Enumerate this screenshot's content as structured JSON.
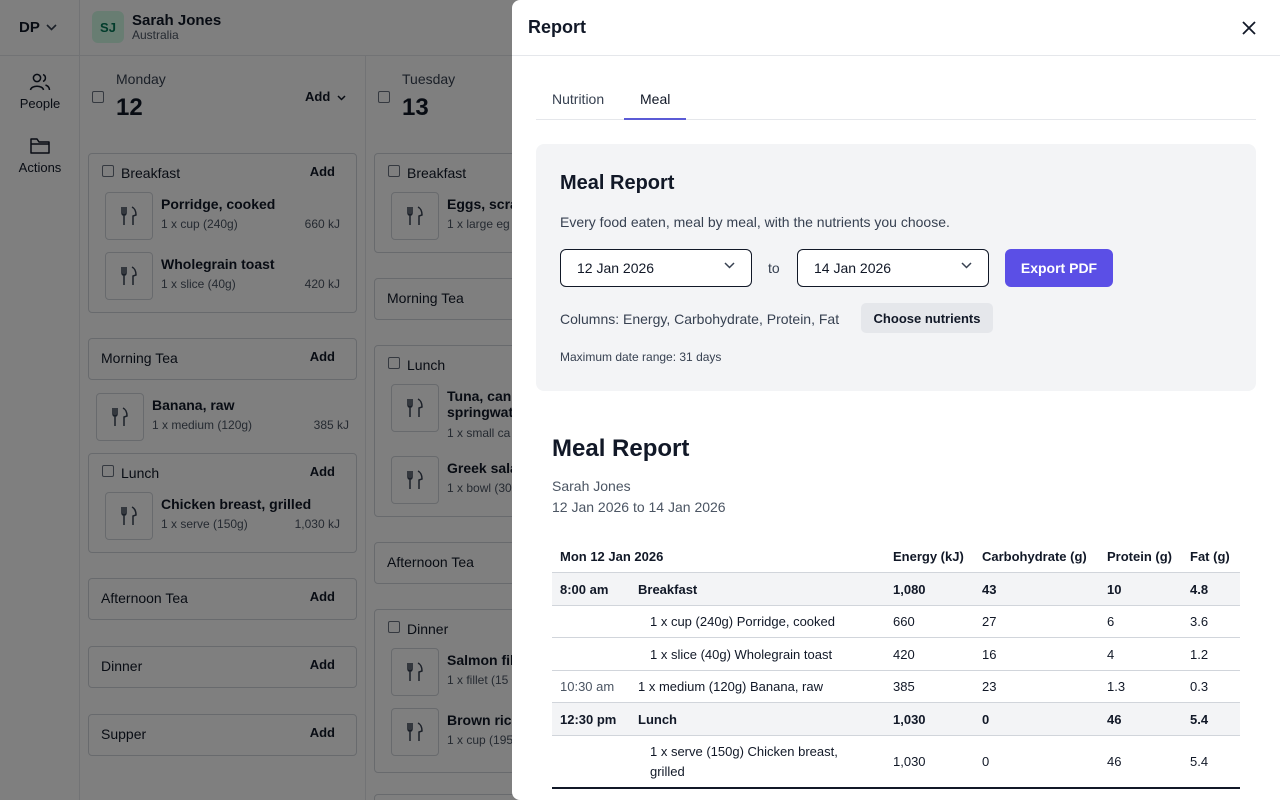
{
  "app": {
    "workspace": "DP",
    "person": {
      "initials": "SJ",
      "name": "Sarah Jones",
      "country": "Australia"
    },
    "sidebar": [
      {
        "label": "People",
        "icon": "people-icon"
      },
      {
        "label": "Actions",
        "icon": "folder-icon"
      }
    ],
    "days": [
      {
        "name": "Monday",
        "number": "12",
        "add_label": "Add",
        "meals": {
          "breakfast": {
            "title": "Breakfast",
            "add": "Add",
            "items": [
              {
                "name": "Porridge, cooked",
                "serving": "1 x cup (240g)",
                "energy": "660 kJ"
              },
              {
                "name": "Wholegrain toast",
                "serving": "1 x slice (40g)",
                "energy": "420 kJ"
              }
            ]
          },
          "morning_tea": {
            "title": "Morning Tea",
            "add": "Add",
            "items": [
              {
                "name": "Banana, raw",
                "serving": "1 x medium (120g)",
                "energy": "385 kJ"
              }
            ]
          },
          "lunch": {
            "title": "Lunch",
            "add": "Add",
            "items": [
              {
                "name": "Chicken breast, grilled",
                "serving": "1 x serve (150g)",
                "energy": "1,030 kJ"
              }
            ]
          },
          "afternoon_tea": {
            "title": "Afternoon Tea",
            "add": "Add"
          },
          "dinner": {
            "title": "Dinner",
            "add": "Add"
          },
          "supper": {
            "title": "Supper",
            "add": "Add"
          }
        }
      },
      {
        "name": "Tuesday",
        "number": "13",
        "meals": {
          "breakfast": {
            "title": "Breakfast",
            "items": [
              {
                "name": "Eggs, scra",
                "serving": "1 x large eg"
              }
            ]
          },
          "morning_tea": {
            "title": "Morning Tea"
          },
          "lunch": {
            "title": "Lunch",
            "items": [
              {
                "name": "Tuna, cann",
                "name2": "springwat",
                "serving": "1 x small ca"
              },
              {
                "name": "Greek sala",
                "serving": "1 x bowl (30"
              }
            ]
          },
          "afternoon_tea": {
            "title": "Afternoon Tea"
          },
          "dinner": {
            "title": "Dinner",
            "items": [
              {
                "name": "Salmon fil",
                "serving": "1 x fillet (15"
              },
              {
                "name": "Brown rice",
                "serving": "1 x cup (195"
              }
            ]
          }
        }
      }
    ]
  },
  "drawer": {
    "title": "Report",
    "tabs": [
      {
        "label": "Nutrition",
        "active": false
      },
      {
        "label": "Meal",
        "active": true
      }
    ],
    "panel": {
      "title": "Meal Report",
      "description": "Every food eaten, meal by meal, with the nutrients you choose.",
      "from_date": "12 Jan 2026",
      "to_label": "to",
      "to_date": "14 Jan 2026",
      "export_label": "Export PDF",
      "columns_label": "Columns: Energy, Carbohydrate, Protein, Fat",
      "choose_label": "Choose nutrients",
      "max_range": "Maximum date range: 31 days"
    },
    "report": {
      "title": "Meal Report",
      "person": "Sarah Jones",
      "range": "12 Jan 2026 to 14 Jan 2026",
      "headers": {
        "date": "Mon 12 Jan 2026",
        "energy": "Energy (kJ)",
        "carb": "Carbohydrate (g)",
        "protein": "Protein (g)",
        "fat": "Fat (g)"
      },
      "rows": [
        {
          "time": "8:00 am",
          "label": "Breakfast",
          "energy": "1,080",
          "carb": "43",
          "protein": "10",
          "fat": "4.8"
        },
        {
          "time": "",
          "label": "1 x cup (240g) Porridge, cooked",
          "energy": "660",
          "carb": "27",
          "protein": "6",
          "fat": "3.6"
        },
        {
          "time": "",
          "label": "1 x slice (40g) Wholegrain toast",
          "energy": "420",
          "carb": "16",
          "protein": "4",
          "fat": "1.2"
        },
        {
          "time": "10:30 am",
          "label": "1 x medium (120g) Banana, raw",
          "energy": "385",
          "carb": "23",
          "protein": "1.3",
          "fat": "0.3"
        },
        {
          "time": "12:30 pm",
          "label": "Lunch",
          "energy": "1,030",
          "carb": "0",
          "protein": "46",
          "fat": "5.4"
        },
        {
          "time": "",
          "label": "1 x serve (150g) Chicken breast,",
          "label2": "grilled",
          "energy": "1,030",
          "carb": "0",
          "protein": "46",
          "fat": "5.4"
        }
      ]
    }
  }
}
